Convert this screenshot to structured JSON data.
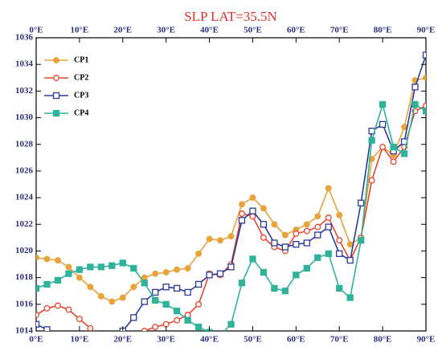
{
  "chart_data": {
    "type": "line",
    "title": "SLP  LAT=35.5N",
    "x": [
      0,
      2.5,
      5,
      7.5,
      10,
      12.5,
      15,
      17.5,
      20,
      22.5,
      25,
      27.5,
      30,
      32.5,
      35,
      37.5,
      40,
      42.5,
      45,
      47.5,
      50,
      52.5,
      55,
      57.5,
      60,
      62.5,
      65,
      67.5,
      70,
      72.5,
      75,
      77.5,
      80,
      82.5,
      85,
      87.5,
      90
    ],
    "series": [
      {
        "name": "CP1",
        "color": "#e8a33a",
        "marker": "circle-filled",
        "values": [
          1019.5,
          1019.4,
          1019.3,
          1018.8,
          1018.0,
          1017.3,
          1016.6,
          1016.2,
          1016.5,
          1017.3,
          1018.0,
          1018.3,
          1018.4,
          1018.6,
          1018.7,
          1019.8,
          1020.9,
          1020.8,
          1021.1,
          1023.5,
          1024.0,
          1023.2,
          1022.0,
          1021.2,
          1021.6,
          1022.0,
          1022.6,
          1024.7,
          1022.7,
          1020.5,
          1021.0,
          1026.9,
          1027.8,
          1027.2,
          1029.3,
          1032.8,
          1033.0
        ]
      },
      {
        "name": "CP2",
        "color": "#e8452c",
        "marker": "circle-open",
        "values": [
          1015.2,
          1015.7,
          1015.9,
          1015.6,
          1014.9,
          1014.2,
          1013.5,
          1013.0,
          1012.8,
          1013.2,
          1014.0,
          1014.3,
          1014.5,
          1014.8,
          1015.2,
          1016.0,
          1018.3,
          1018.2,
          1019.0,
          1022.8,
          1022.6,
          1021.0,
          1020.3,
          1020.0,
          1021.3,
          1021.5,
          1021.8,
          1022.5,
          1020.8,
          1019.3,
          1021.0,
          1025.3,
          1027.8,
          1026.7,
          1027.8,
          1030.5,
          1030.9
        ]
      },
      {
        "name": "CP3",
        "color": "#2b3a9a",
        "marker": "square-open",
        "values": [
          1014.5,
          1014.1,
          1013.6,
          1013.2,
          1013.0,
          1012.9,
          1013.1,
          1013.5,
          1014.0,
          1015.0,
          1016.2,
          1016.9,
          1017.3,
          1017.2,
          1016.9,
          1017.5,
          1018.2,
          1018.3,
          1018.8,
          1022.3,
          1023.0,
          1022.0,
          1020.6,
          1020.3,
          1020.5,
          1020.6,
          1021.2,
          1021.8,
          1019.8,
          1019.3,
          1023.6,
          1029.0,
          1029.5,
          1027.5,
          1028.2,
          1032.3,
          1034.7
        ]
      },
      {
        "name": "CP4",
        "color": "#2fb39a",
        "marker": "square-filled",
        "values": [
          1017.2,
          1017.5,
          1017.8,
          1018.3,
          1018.6,
          1018.8,
          1018.8,
          1018.9,
          1019.1,
          1018.7,
          1017.6,
          1016.3,
          1016.0,
          1015.5,
          1014.8,
          1014.3,
          1013.9,
          1013.7,
          1014.5,
          1017.6,
          1019.4,
          1018.4,
          1017.2,
          1017.0,
          1018.2,
          1018.7,
          1019.5,
          1019.8,
          1017.2,
          1016.5,
          1020.8,
          1028.3,
          1031.0,
          1027.8,
          1027.3,
          1031.0,
          1030.5
        ]
      }
    ],
    "xlim": [
      0,
      90
    ],
    "xticks": [
      {
        "value": 0,
        "label": "0°E"
      },
      {
        "value": 10,
        "label": "10°E"
      },
      {
        "value": 20,
        "label": "20°E"
      },
      {
        "value": 30,
        "label": "30°E"
      },
      {
        "value": 40,
        "label": "40°E"
      },
      {
        "value": 50,
        "label": "50°E"
      },
      {
        "value": 60,
        "label": "60°E"
      },
      {
        "value": 70,
        "label": "70°E"
      },
      {
        "value": 80,
        "label": "80°E"
      },
      {
        "value": 90,
        "label": "90°E"
      }
    ],
    "ylim": [
      1014,
      1036
    ],
    "yticks": [
      1014,
      1016,
      1018,
      1020,
      1022,
      1024,
      1026,
      1028,
      1030,
      1032,
      1034,
      1036
    ],
    "legend": "upper-left"
  }
}
